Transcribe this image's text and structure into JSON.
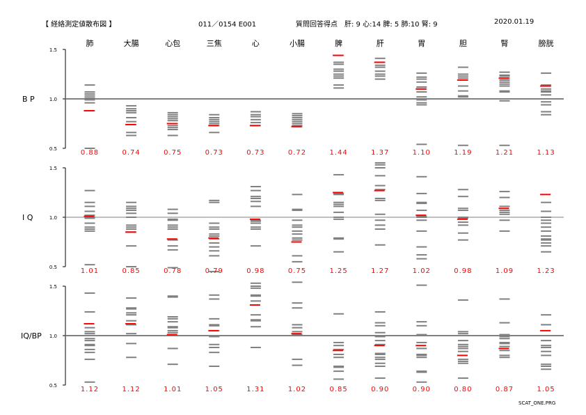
{
  "header": {
    "title": "【 経絡測定値散布図 】",
    "record_id": "011／0154 E001",
    "questionnaire": "質問回答得点　肝: 9 心:14 脾: 5 肺:10 腎: 9",
    "date": "2020.01.19"
  },
  "footer": {
    "program": "SCAT_ONE.PRG"
  },
  "colors": {
    "gray_bar": "#808080",
    "highlight": "#ff0000",
    "axis": "#808080"
  },
  "chart_data": {
    "type": "scatter",
    "categories": [
      "肺",
      "大腸",
      "心包",
      "三焦",
      "心",
      "小腸",
      "脾",
      "肝",
      "胃",
      "胆",
      "腎",
      "膀胱"
    ],
    "ylim": [
      0.5,
      1.5
    ],
    "yticks": [
      "1.5",
      "1.0",
      "0.5"
    ],
    "reference_line": 1.0,
    "panels": [
      {
        "label": "B P",
        "values": [
          "0.88",
          "0.74",
          "0.75",
          "0.73",
          "0.73",
          "0.72",
          "1.44",
          "1.37",
          "1.10",
          "1.19",
          "1.21",
          "1.13"
        ],
        "distribution": [
          [
            1.14,
            1.07,
            1.05,
            1.03,
            1.01,
            0.99,
            0.96,
            0.88,
            0.5
          ],
          [
            0.93,
            0.9,
            0.88,
            0.86,
            0.81,
            0.77,
            0.74,
            0.66,
            0.63
          ],
          [
            0.86,
            0.84,
            0.82,
            0.8,
            0.78,
            0.75,
            0.73,
            0.71,
            0.69,
            0.63
          ],
          [
            0.84,
            0.81,
            0.79,
            0.77,
            0.75,
            0.73,
            0.66
          ],
          [
            0.87,
            0.84,
            0.82,
            0.79,
            0.76,
            0.73
          ],
          [
            0.85,
            0.83,
            0.81,
            0.79,
            0.77,
            0.75,
            0.73,
            0.72
          ],
          [
            1.44,
            1.37,
            1.35,
            1.3,
            1.28,
            1.25,
            1.23,
            1.21,
            1.14,
            1.11
          ],
          [
            1.41,
            1.37,
            1.34,
            1.32,
            1.28,
            1.25,
            1.23,
            1.2
          ],
          [
            1.26,
            1.22,
            1.2,
            1.17,
            1.12,
            1.1,
            1.07,
            1.02,
            0.99,
            0.96,
            0.94,
            0.54
          ],
          [
            1.32,
            1.25,
            1.23,
            1.21,
            1.19,
            1.13,
            1.08,
            1.03,
            1.02,
            0.53
          ],
          [
            1.27,
            1.24,
            1.23,
            1.21,
            1.19,
            1.17,
            1.15,
            1.13,
            1.08,
            1.07,
            0.98,
            0.53
          ],
          [
            1.26,
            1.14,
            1.13,
            1.1,
            1.08,
            1.07,
            1.04,
            0.97,
            0.94,
            0.87,
            0.84
          ]
        ]
      },
      {
        "label": "I Q",
        "values": [
          "1.01",
          "0.85",
          "0.78",
          "0.79",
          "0.98",
          "0.75",
          "1.25",
          "1.27",
          "1.02",
          "0.98",
          "1.09",
          "1.23"
        ],
        "distribution": [
          [
            1.27,
            1.15,
            1.11,
            1.06,
            1.02,
            1.0,
            0.99,
            0.94,
            0.9,
            0.88,
            0.86,
            0.52
          ],
          [
            1.15,
            1.11,
            1.09,
            1.07,
            1.04,
            1.0,
            0.92,
            0.9,
            0.88,
            0.85,
            0.71,
            0.5
          ],
          [
            1.08,
            1.04,
            0.98,
            0.97,
            0.92,
            0.9,
            0.88,
            0.77,
            0.71,
            0.67,
            0.49
          ],
          [
            1.17,
            1.15,
            0.94,
            0.9,
            0.88,
            0.83,
            0.81,
            0.78,
            0.74,
            0.7,
            0.66,
            0.61,
            0.45
          ],
          [
            1.31,
            1.27,
            1.21,
            1.19,
            1.16,
            1.11,
            0.97,
            0.96,
            0.94,
            0.9,
            0.88,
            0.71
          ],
          [
            1.23,
            1.08,
            1.07,
            0.97,
            0.92,
            0.9,
            0.86,
            0.83,
            0.79,
            0.77,
            0.61,
            0.55
          ],
          [
            1.43,
            1.24,
            1.23,
            1.15,
            1.13,
            1.11,
            1.05,
            1.0,
            0.98,
            0.79,
            0.78,
            0.65
          ],
          [
            1.55,
            1.53,
            1.5,
            1.42,
            1.32,
            1.28,
            1.19,
            1.17,
            1.03,
            0.97,
            0.92,
            0.88,
            0.72
          ],
          [
            1.41,
            1.24,
            1.15,
            1.14,
            1.07,
            1.01,
            1.0,
            0.97,
            0.86,
            0.7,
            0.62,
            0.58
          ],
          [
            1.28,
            1.21,
            1.09,
            1.07,
            1.0,
            0.99,
            0.95,
            0.92,
            0.84,
            0.77
          ],
          [
            1.26,
            1.2,
            1.11,
            1.07,
            1.05,
            1.03,
            0.97,
            0.86
          ],
          [
            1.15,
            1.06,
            1.0,
            0.97,
            0.94,
            0.9,
            0.86,
            0.81,
            0.78,
            0.77,
            0.74,
            0.71,
            0.65
          ]
        ]
      },
      {
        "label": "IQ/BP",
        "values": [
          "1.12",
          "1.12",
          "1.01",
          "1.05",
          "1.31",
          "1.02",
          "0.85",
          "0.90",
          "0.90",
          "0.80",
          "0.87",
          "1.05"
        ],
        "distribution": [
          [
            1.43,
            1.24,
            1.08,
            1.04,
            1.02,
            1.0,
            0.97,
            0.95,
            0.91,
            0.9,
            0.86,
            0.83,
            0.76,
            0.53
          ],
          [
            1.38,
            1.28,
            1.27,
            1.23,
            1.21,
            1.15,
            1.11,
            1.02,
            0.92,
            0.78
          ],
          [
            1.4,
            1.39,
            1.19,
            1.17,
            1.14,
            1.09,
            1.08,
            1.05,
            1.03,
            1.0,
            0.87,
            0.71
          ],
          [
            1.41,
            1.37,
            1.17,
            1.11,
            1.1,
            1.05,
            1.0,
            0.99,
            0.91,
            0.88,
            0.83,
            0.69
          ],
          [
            1.53,
            1.5,
            1.48,
            1.41,
            1.4,
            1.35,
            1.21,
            1.16,
            1.15,
            1.09,
            0.88
          ],
          [
            1.54,
            1.33,
            1.28,
            1.11,
            1.08,
            1.04,
            1.01,
            0.76,
            0.7
          ],
          [
            1.22,
            0.93,
            0.9,
            0.86,
            0.81,
            0.78,
            0.69,
            0.68,
            0.64,
            0.56
          ],
          [
            1.24,
            1.13,
            1.1,
            1.03,
            0.99,
            0.95,
            0.91,
            0.82,
            0.81,
            0.78,
            0.76,
            0.72,
            0.69,
            0.57
          ],
          [
            1.51,
            1.14,
            1.1,
            1.01,
            0.93,
            0.87,
            0.81,
            0.8,
            0.78,
            0.64,
            0.63,
            0.53
          ],
          [
            1.36,
            1.04,
            1.02,
            0.95,
            0.91,
            0.89,
            0.87,
            0.84,
            0.76,
            0.74,
            0.72,
            0.57
          ],
          [
            1.37,
            1.13,
            1.01,
            0.99,
            0.97,
            0.93,
            0.92,
            0.89,
            0.85,
            0.8,
            0.78
          ],
          [
            1.21,
            1.11,
            0.95,
            0.9,
            0.88,
            0.84,
            0.8,
            0.71,
            0.69,
            0.66
          ]
        ]
      }
    ]
  }
}
